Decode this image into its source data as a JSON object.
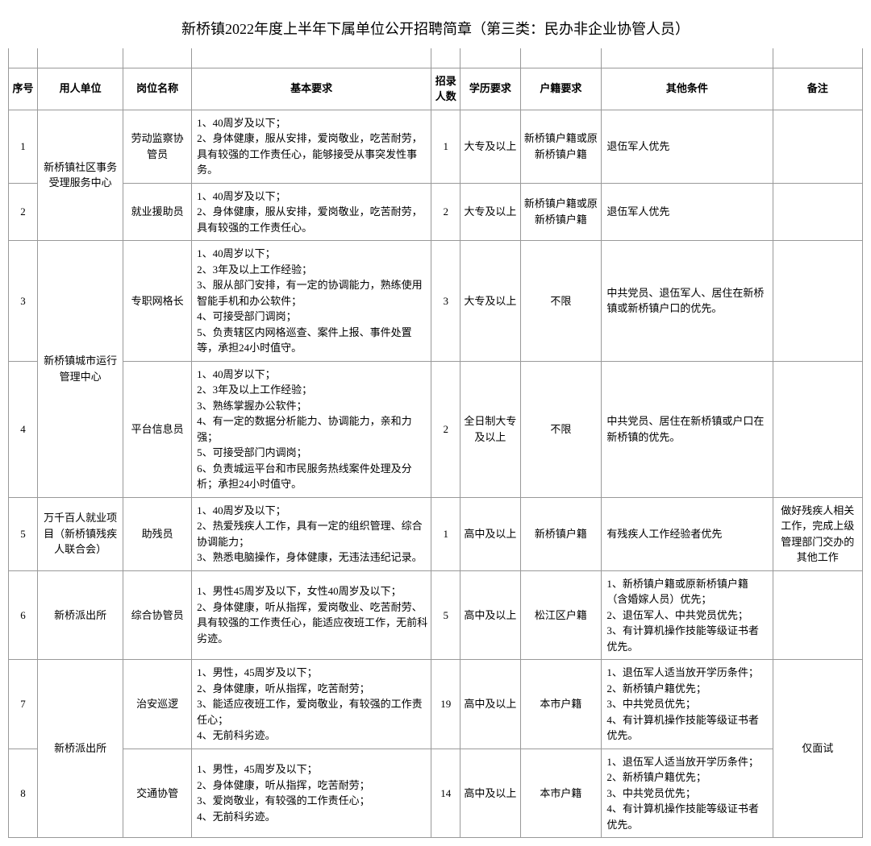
{
  "title": "新桥镇2022年度上半年下属单位公开招聘简章（第三类：民办非企业协管人员）",
  "headers": {
    "seq": "序号",
    "unit": "用人单位",
    "position": "岗位名称",
    "requirement": "基本要求",
    "count": "招录人数",
    "education": "学历要求",
    "registry": "户籍要求",
    "other": "其他条件",
    "remark": "备注"
  },
  "rows": [
    {
      "seq": "1",
      "unit": "新桥镇社区事务受理服务中心",
      "unitRowspan": 2,
      "position": "劳动监察协管员",
      "requirement": "1、40周岁及以下；\n2、身体健康，服从安排，爱岗敬业，吃苦耐劳，具有较强的工作责任心，能够接受从事突发性事务。",
      "count": "1",
      "education": "大专及以上",
      "registry": "新桥镇户籍或原新桥镇户籍",
      "other": "退伍军人优先",
      "remark": ""
    },
    {
      "seq": "2",
      "position": "就业援助员",
      "requirement": "1、40周岁及以下；\n2、身体健康，服从安排，爱岗敬业，吃苦耐劳，具有较强的工作责任心。",
      "count": "2",
      "education": "大专及以上",
      "registry": "新桥镇户籍或原新桥镇户籍",
      "other": "退伍军人优先",
      "remark": ""
    },
    {
      "seq": "3",
      "unit": "新桥镇城市运行管理中心",
      "unitRowspan": 2,
      "position": "专职网格长",
      "requirement": "1、40周岁以下；\n2、3年及以上工作经验；\n3、服从部门安排，有一定的协调能力，熟练使用智能手机和办公软件；\n4、可接受部门调岗；\n5、负责辖区内网格巡查、案件上报、事件处置等，承担24小时值守。",
      "count": "3",
      "education": "大专及以上",
      "registry": "不限",
      "other": "中共党员、退伍军人、居住在新桥镇或新桥镇户口的优先。",
      "remark": ""
    },
    {
      "seq": "4",
      "position": "平台信息员",
      "requirement": "1、40周岁以下；\n2、3年及以上工作经验；\n3、熟练掌握办公软件；\n4、有一定的数据分析能力、协调能力，亲和力强；\n5、可接受部门内调岗；\n6、负责城运平台和市民服务热线案件处理及分析；承担24小时值守。",
      "count": "2",
      "education": "全日制大专及以上",
      "registry": "不限",
      "other": "中共党员、居住在新桥镇或户口在新桥镇的优先。",
      "remark": ""
    },
    {
      "seq": "5",
      "unit": "万千百人就业项目（新桥镇残疾人联合会）",
      "unitRowspan": 1,
      "position": "助残员",
      "requirement": "1、40周岁及以下；\n2、热爱残疾人工作，具有一定的组织管理、综合协调能力；\n3、熟悉电脑操作，身体健康，无违法违纪记录。",
      "count": "1",
      "education": "高中及以上",
      "registry": "新桥镇户籍",
      "other": "有残疾人工作经验者优先",
      "remark": "做好残疾人相关工作，完成上级管理部门交办的其他工作"
    },
    {
      "seq": "6",
      "unit": "新桥派出所",
      "unitRowspan": 1,
      "position": "综合协管员",
      "requirement": "1、男性45周岁及以下，女性40周岁及以下；\n2、身体健康，听从指挥，爱岗敬业、吃苦耐劳、具有较强的工作责任心，能适应夜班工作，无前科劣迹。",
      "count": "5",
      "education": "高中及以上",
      "registry": "松江区户籍",
      "other": "1、新桥镇户籍或原新桥镇户籍（含婚嫁人员）优先；\n2、退伍军人、中共党员优先；\n3、有计算机操作技能等级证书者优先。",
      "remark": ""
    },
    {
      "seq": "7",
      "unit": "新桥派出所",
      "unitRowspan": 2,
      "position": "治安巡逻",
      "requirement": "1、男性，45周岁及以下；\n2、身体健康，听从指挥，吃苦耐劳；\n3、能适应夜班工作，爱岗敬业，有较强的工作责任心；\n4、无前科劣迹。",
      "count": "19",
      "education": "高中及以上",
      "registry": "本市户籍",
      "other": "1、退伍军人适当放开学历条件；\n2、新桥镇户籍优先；\n3、中共党员优先；\n4、有计算机操作技能等级证书者优先。",
      "remark": "仅面试",
      "remarkRowspan": 2
    },
    {
      "seq": "8",
      "position": "交通协管",
      "requirement": "1、男性，45周岁及以下；\n2、身体健康，听从指挥，吃苦耐劳；\n3、爱岗敬业，有较强的工作责任心；\n4、无前科劣迹。",
      "count": "14",
      "education": "高中及以上",
      "registry": "本市户籍",
      "other": "1、退伍军人适当放开学历条件；\n2、新桥镇户籍优先；\n3、中共党员优先；\n4、有计算机操作技能等级证书者优先。"
    }
  ]
}
